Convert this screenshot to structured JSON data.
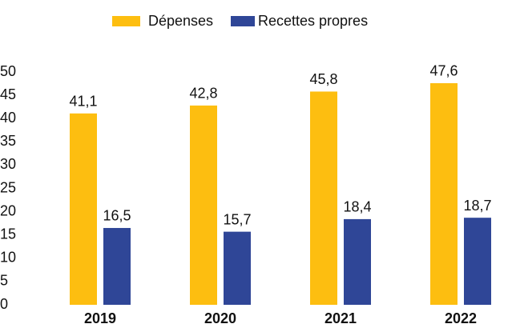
{
  "chart_data": {
    "type": "bar",
    "categories": [
      "2019",
      "2020",
      "2021",
      "2022"
    ],
    "series": [
      {
        "name": "Dépenses",
        "color": "#FDBE10",
        "values": [
          41.1,
          42.8,
          45.8,
          47.6
        ],
        "value_labels": [
          "41,1",
          "42,8",
          "45,8",
          "47,6"
        ]
      },
      {
        "name": "Recettes propres",
        "color": "#2F4697",
        "values": [
          16.5,
          15.7,
          18.4,
          18.7
        ],
        "value_labels": [
          "16,5",
          "15,7",
          "18,4",
          "18,7"
        ]
      }
    ],
    "ylim": [
      0,
      50
    ],
    "yticks": [
      0,
      5,
      10,
      15,
      20,
      25,
      30,
      35,
      40,
      45,
      50
    ],
    "grid": false,
    "legend": "top"
  }
}
